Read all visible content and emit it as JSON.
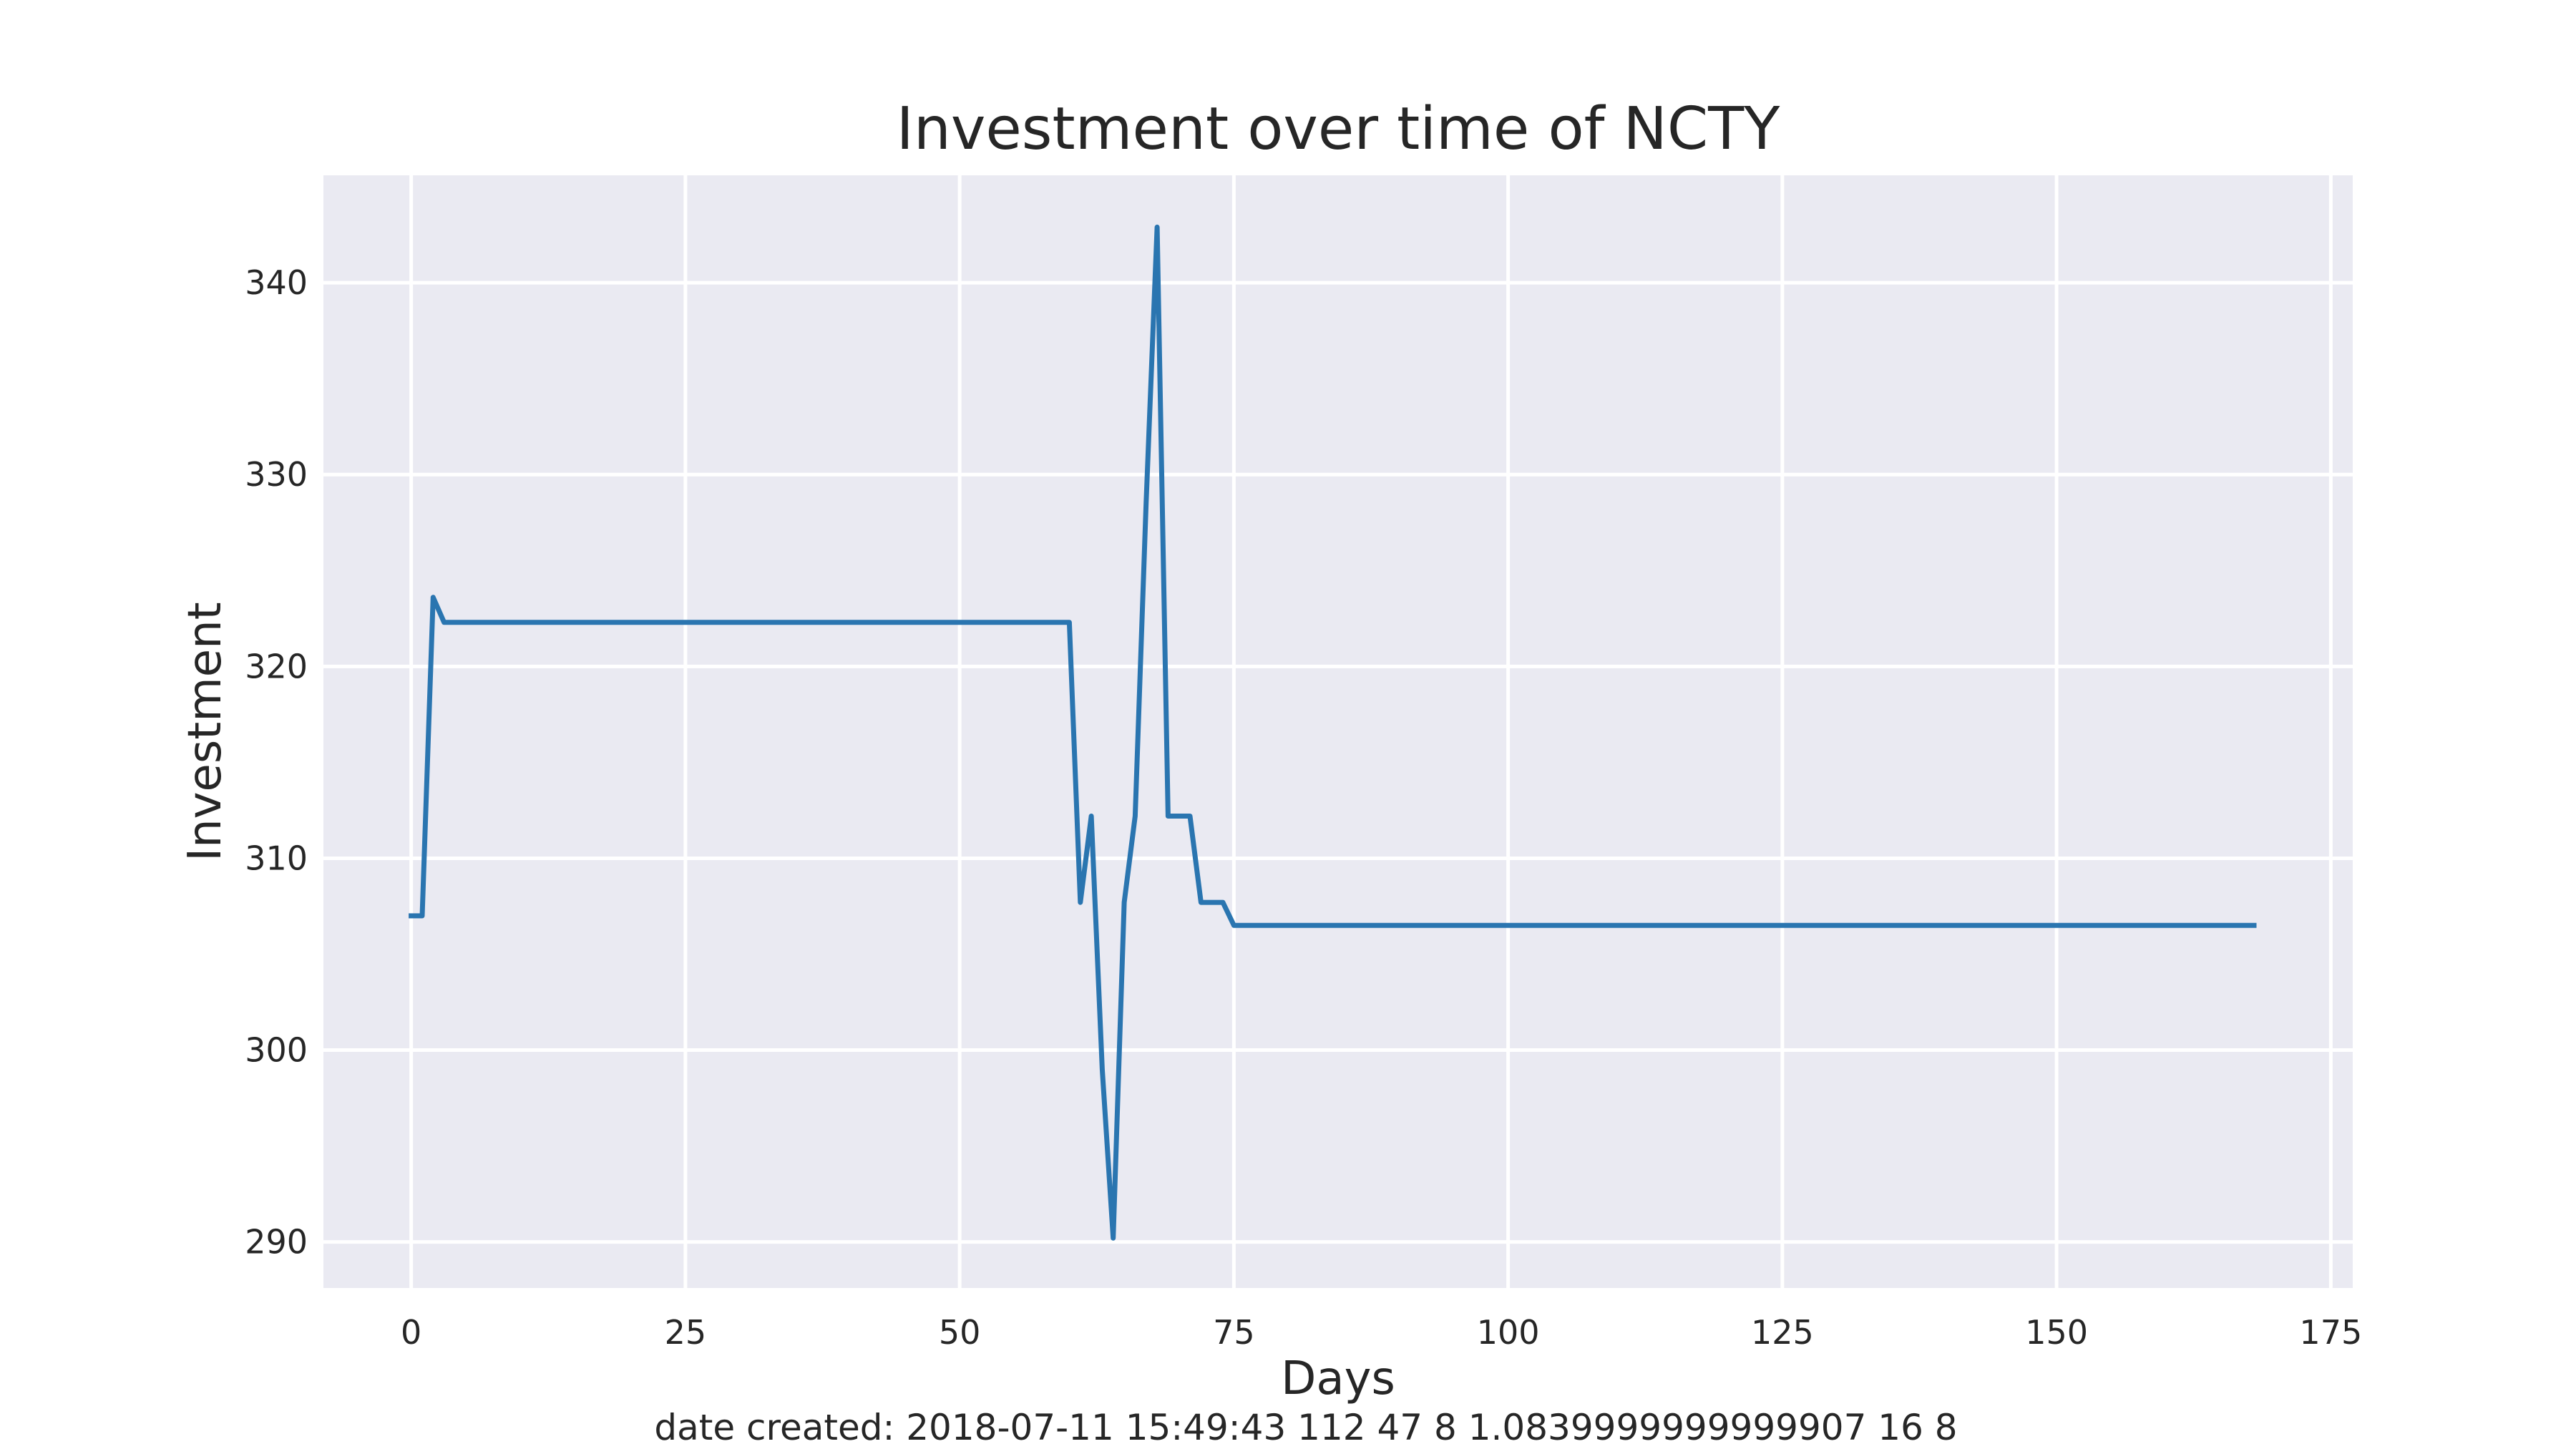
{
  "chart_data": {
    "type": "line",
    "title": "Investment over time of NCTY",
    "xlabel": "Days",
    "ylabel": "Investment",
    "caption": "date created: 2018-07-11 15:49:43 112 47 8 1.0839999999999907 16 8",
    "xlim": [
      -8,
      177
    ],
    "ylim": [
      287.6,
      345.6
    ],
    "xticks": [
      0,
      25,
      50,
      75,
      100,
      125,
      150,
      175
    ],
    "yticks": [
      290,
      300,
      310,
      320,
      330,
      340
    ],
    "grid": true,
    "legend": "none",
    "colors": {
      "background": "#eaeaf2",
      "grid": "#ffffff",
      "line": "#2a75b0",
      "text": "#262626"
    },
    "series": [
      {
        "x": [
          0,
          1,
          2,
          3,
          4,
          60,
          61,
          62,
          63,
          64,
          65,
          66,
          67,
          68,
          69,
          70,
          71,
          72,
          73,
          74,
          75,
          168
        ],
        "y": [
          307.0,
          307.0,
          323.6,
          322.3,
          322.3,
          322.3,
          307.7,
          312.2,
          299.0,
          290.2,
          307.7,
          312.2,
          328.5,
          342.9,
          312.2,
          312.2,
          312.2,
          307.7,
          307.7,
          307.7,
          306.5,
          306.5
        ]
      }
    ]
  }
}
